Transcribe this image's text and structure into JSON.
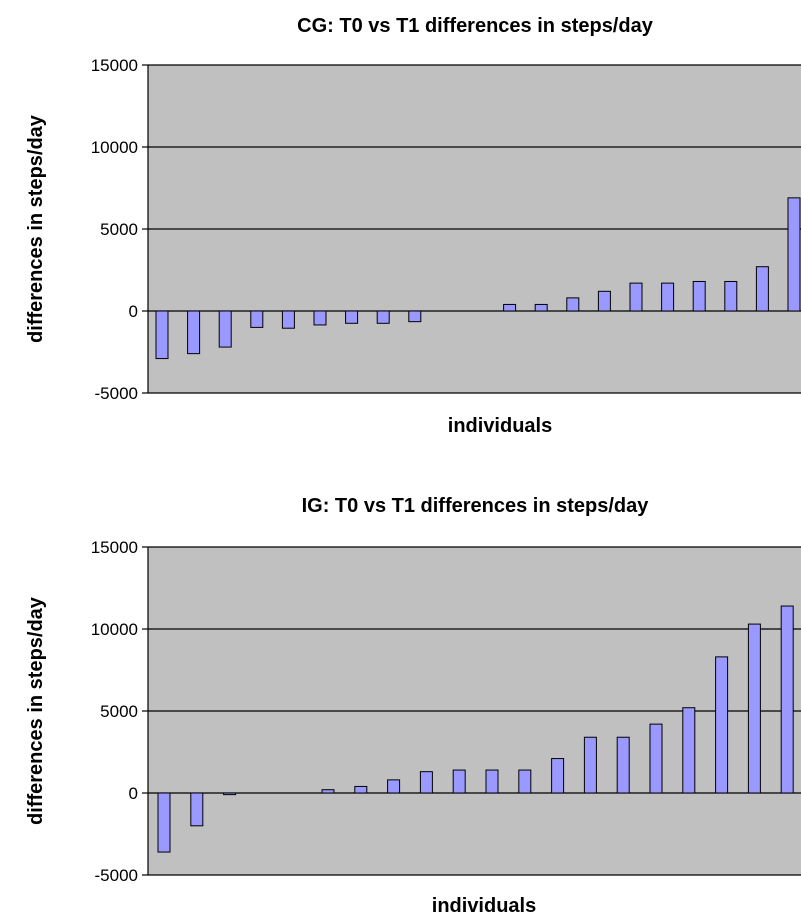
{
  "chart_data": [
    {
      "type": "bar",
      "title": "CG: T0 vs T1 differences in steps/day",
      "xlabel": "individuals",
      "ylabel": "differences in steps/day",
      "ylim": [
        -5000,
        15000
      ],
      "yticks": [
        "15000",
        "10000",
        "5000",
        "0",
        "-5000"
      ],
      "grid": true,
      "values": [
        -2900,
        -2600,
        -2200,
        -1000,
        -1050,
        -850,
        -750,
        -750,
        -650,
        0,
        0,
        400,
        400,
        800,
        1200,
        1700,
        1700,
        1800,
        1800,
        2700,
        6900
      ]
    },
    {
      "type": "bar",
      "title": "IG: T0 vs T1 differences in steps/day",
      "xlabel": "individuals",
      "ylabel": "differences in steps/day",
      "ylim": [
        -5000,
        15000
      ],
      "yticks": [
        "15000",
        "10000",
        "5000",
        "0",
        "-5000"
      ],
      "grid": true,
      "values": [
        -3600,
        -2000,
        -100,
        0,
        0,
        200,
        400,
        800,
        1300,
        1400,
        1400,
        1400,
        2100,
        3400,
        3400,
        4200,
        5200,
        8300,
        10300,
        11400
      ]
    }
  ],
  "colors": {
    "plot_background": "#c0c0c0",
    "bar_fill": "#9999ff",
    "bar_stroke": "#000000",
    "gridline": "#000000"
  }
}
